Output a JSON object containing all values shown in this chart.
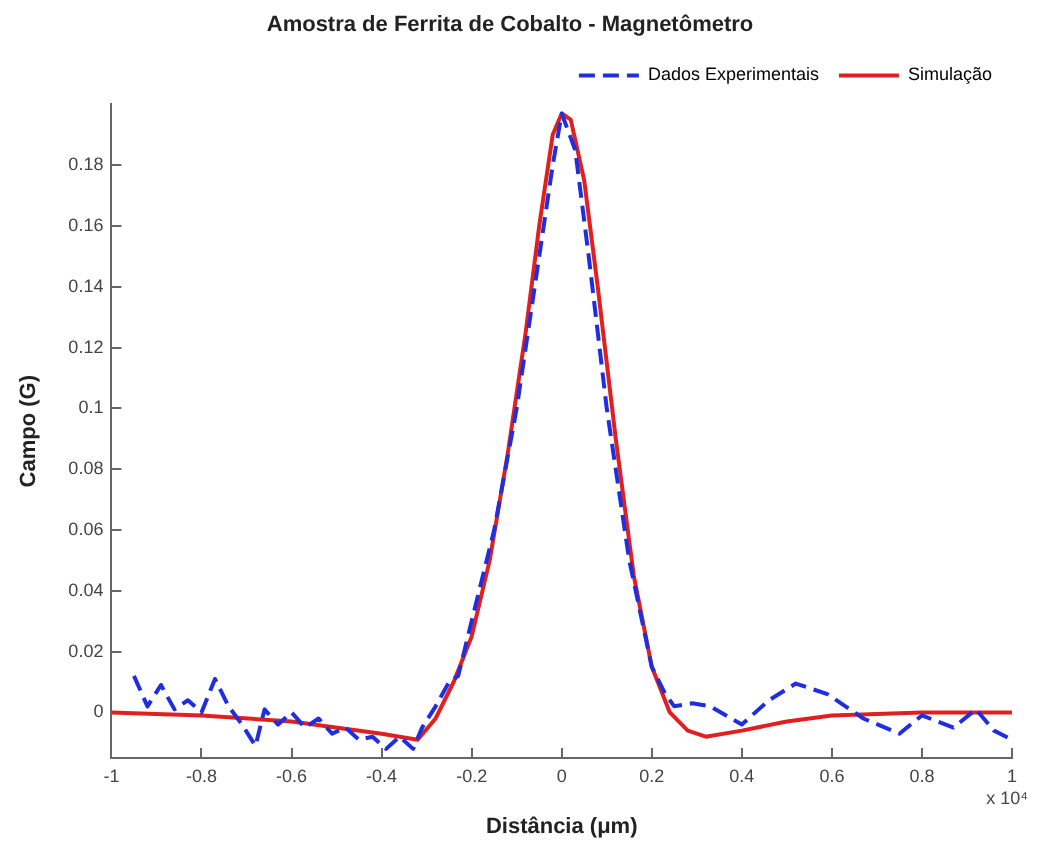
{
  "chart_data": {
    "type": "line",
    "title": "Amostra de Ferrita de Cobalto - Magnetômetro",
    "xlabel": "Distância (μm)",
    "ylabel": "Campo (G)",
    "annotations": [
      "x 10⁴"
    ],
    "xlim": [
      -1,
      1
    ],
    "xticks": [
      -1,
      -0.8,
      -0.6,
      -0.4,
      -0.2,
      0,
      0.2,
      0.4,
      0.6,
      0.8,
      1
    ],
    "ylim": [
      -0.015,
      0.2
    ],
    "yticks": [
      0,
      0.02,
      0.04,
      0.06,
      0.08,
      0.1,
      0.12,
      0.14,
      0.16,
      0.18
    ],
    "grid": false,
    "legend": "top right",
    "marker": "none",
    "series": [
      {
        "name": "Dados Experimentais",
        "color": "#1f2fe0",
        "line_style": "dashed",
        "x": [
          -0.95,
          -0.92,
          -0.89,
          -0.86,
          -0.83,
          -0.8,
          -0.77,
          -0.74,
          -0.71,
          -0.68,
          -0.66,
          -0.63,
          -0.6,
          -0.57,
          -0.54,
          -0.51,
          -0.48,
          -0.45,
          -0.42,
          -0.39,
          -0.36,
          -0.33,
          -0.31,
          -0.28,
          -0.25,
          -0.23,
          -0.2,
          -0.15,
          -0.1,
          -0.05,
          -0.02,
          0,
          0.03,
          0.06,
          0.1,
          0.15,
          0.2,
          0.23,
          0.25,
          0.29,
          0.33,
          0.4,
          0.46,
          0.52,
          0.59,
          0.67,
          0.75,
          0.8,
          0.87,
          0.92,
          0.96,
          1
        ],
        "values": [
          0.012,
          0.002,
          0.009,
          0.001,
          0.004,
          0,
          0.011,
          0.002,
          -0.004,
          -0.011,
          0.001,
          -0.004,
          0,
          -0.005,
          -0.002,
          -0.007,
          -0.005,
          -0.009,
          -0.008,
          -0.012,
          -0.008,
          -0.012,
          -0.005,
          0.002,
          0.01,
          0.012,
          0.03,
          0.06,
          0.1,
          0.15,
          0.18,
          0.197,
          0.185,
          0.15,
          0.1,
          0.05,
          0.015,
          0.006,
          0.002,
          0.003,
          0.002,
          -0.004,
          0.004,
          0.0095,
          0.006,
          -0.002,
          -0.007,
          -0.001,
          -0.005,
          0.001,
          -0.006,
          -0.009
        ]
      },
      {
        "name": "Simulação",
        "color": "#e02020",
        "line_style": "solid",
        "x": [
          -1,
          -0.8,
          -0.6,
          -0.4,
          -0.32,
          -0.28,
          -0.24,
          -0.2,
          -0.16,
          -0.12,
          -0.08,
          -0.05,
          -0.02,
          0,
          0.02,
          0.05,
          0.08,
          0.12,
          0.16,
          0.2,
          0.24,
          0.28,
          0.32,
          0.4,
          0.5,
          0.6,
          0.8,
          1
        ],
        "values": [
          0,
          -0.001,
          -0.003,
          -0.007,
          -0.009,
          -0.002,
          0.01,
          0.025,
          0.05,
          0.085,
          0.125,
          0.16,
          0.19,
          0.197,
          0.195,
          0.175,
          0.14,
          0.09,
          0.045,
          0.015,
          0,
          -0.006,
          -0.008,
          -0.006,
          -0.003,
          -0.001,
          0,
          0
        ]
      }
    ]
  }
}
